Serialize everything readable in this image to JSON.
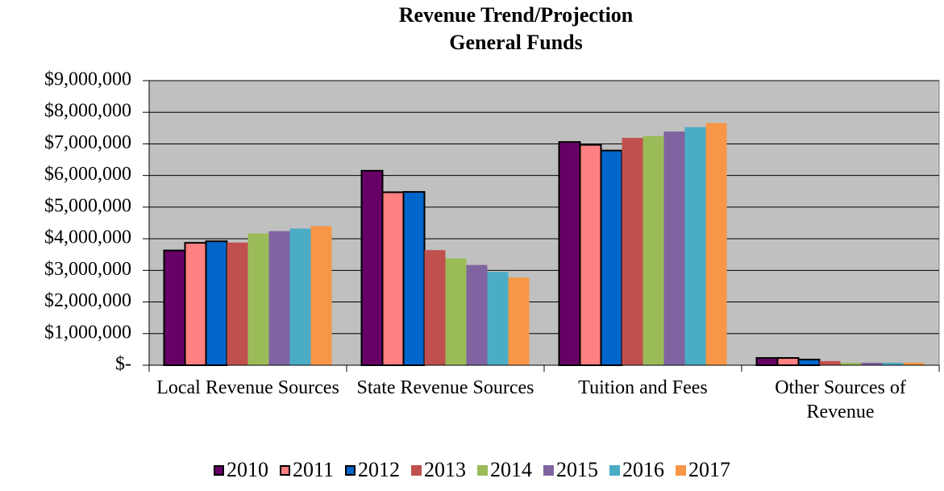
{
  "chart_data": {
    "type": "bar",
    "title": "Revenue Trend/Projection",
    "subtitle": "General Funds",
    "categories": [
      "Local Revenue Sources",
      "State Revenue Sources",
      "Tuition and Fees",
      "Other Sources of Revenue"
    ],
    "series": [
      {
        "name": "2010",
        "color": "#660066",
        "outline": true,
        "values": [
          3630000,
          6150000,
          7060000,
          230000
        ]
      },
      {
        "name": "2011",
        "color": "#ff8080",
        "outline": true,
        "values": [
          3870000,
          5470000,
          6970000,
          230000
        ]
      },
      {
        "name": "2012",
        "color": "#0066cc",
        "outline": true,
        "values": [
          3920000,
          5480000,
          6790000,
          180000
        ]
      },
      {
        "name": "2013",
        "color": "#c0504d",
        "outline": false,
        "values": [
          3880000,
          3640000,
          7190000,
          130000
        ]
      },
      {
        "name": "2014",
        "color": "#9bbb59",
        "outline": false,
        "values": [
          4170000,
          3380000,
          7250000,
          80000
        ]
      },
      {
        "name": "2015",
        "color": "#8064a2",
        "outline": false,
        "values": [
          4240000,
          3170000,
          7390000,
          80000
        ]
      },
      {
        "name": "2016",
        "color": "#4bacc6",
        "outline": false,
        "values": [
          4320000,
          2950000,
          7530000,
          80000
        ]
      },
      {
        "name": "2017",
        "color": "#f79646",
        "outline": false,
        "values": [
          4400000,
          2770000,
          7660000,
          80000
        ]
      }
    ],
    "ylim": [
      0,
      9000000
    ],
    "yticks": [
      {
        "value": 0,
        "label": "$-"
      },
      {
        "value": 1000000,
        "label": "$1,000,000"
      },
      {
        "value": 2000000,
        "label": "$2,000,000"
      },
      {
        "value": 3000000,
        "label": "$3,000,000"
      },
      {
        "value": 4000000,
        "label": "$4,000,000"
      },
      {
        "value": 5000000,
        "label": "$5,000,000"
      },
      {
        "value": 6000000,
        "label": "$6,000,000"
      },
      {
        "value": 7000000,
        "label": "$7,000,000"
      },
      {
        "value": 8000000,
        "label": "$8,000,000"
      },
      {
        "value": 9000000,
        "label": "$9,000,000"
      }
    ],
    "grid": true,
    "plot_background": "#c0c0c0",
    "legend": "bottom"
  }
}
